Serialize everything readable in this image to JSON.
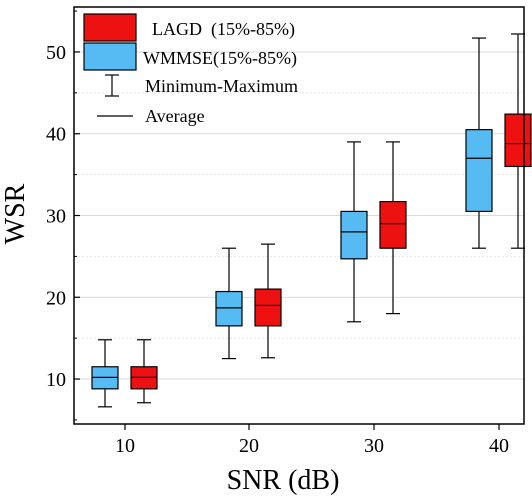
{
  "chart_data": {
    "type": "box",
    "xlabel": "SNR (dB)",
    "ylabel": "WSR",
    "categories": [
      "10",
      "20",
      "30",
      "40"
    ],
    "x_ticks": [
      "10",
      "20",
      "30",
      "40"
    ],
    "y_ticks": [
      "10",
      "20",
      "30",
      "40",
      "50"
    ],
    "ylim": [
      4.5,
      55.5
    ],
    "grid": true,
    "legend_position": "top-left",
    "legend": {
      "lagd": "LAGD  (15%-85%)",
      "wmmse": "WMMSE(15%-85%)",
      "minmax": "Minimum-Maximum",
      "average": "Average"
    },
    "series": [
      {
        "name": "WMMSE",
        "color": "#55BBF2",
        "boxes": [
          {
            "min": 6.6,
            "q15": 8.8,
            "avg": 10.2,
            "q85": 11.5,
            "max": 14.8
          },
          {
            "min": 12.5,
            "q15": 16.5,
            "avg": 18.7,
            "q85": 20.7,
            "max": 26.0
          },
          {
            "min": 17.0,
            "q15": 24.7,
            "avg": 28.0,
            "q85": 30.5,
            "max": 39.0
          },
          {
            "min": 26.0,
            "q15": 30.5,
            "avg": 37.0,
            "q85": 40.5,
            "max": 51.7
          }
        ]
      },
      {
        "name": "LAGD",
        "color": "#EE1111",
        "boxes": [
          {
            "min": 7.1,
            "q15": 8.8,
            "avg": 10.2,
            "q85": 11.5,
            "max": 14.8
          },
          {
            "min": 12.6,
            "q15": 16.5,
            "avg": 19.0,
            "q85": 21.0,
            "max": 26.5
          },
          {
            "min": 18.0,
            "q15": 26.0,
            "avg": 29.0,
            "q85": 31.7,
            "max": 39.0
          },
          {
            "min": 26.0,
            "q15": 36.0,
            "avg": 38.8,
            "q85": 42.4,
            "max": 52.2
          }
        ]
      }
    ]
  }
}
